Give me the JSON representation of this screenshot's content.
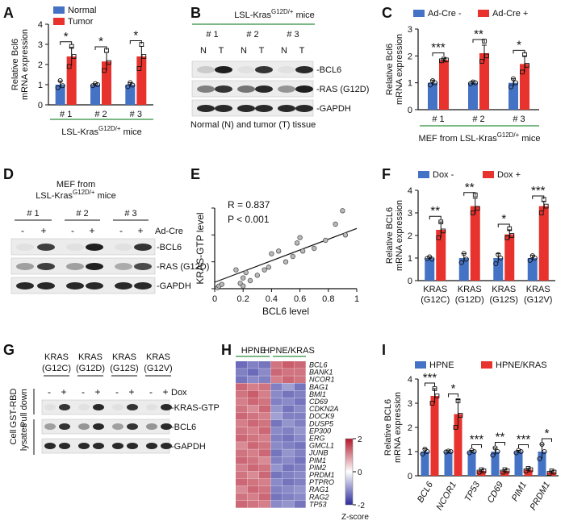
{
  "colors": {
    "blue": "#4472c4",
    "red": "#e8322d",
    "axis": "#111111",
    "grid_line": "#2f8f3f"
  },
  "panels": {
    "A": {
      "letter": "A",
      "legend": [
        "Normal",
        "Tumor"
      ],
      "ylabel_1": "Relative Bcl6",
      "ylabel_2": "mRNA expression",
      "ticks": [
        "0",
        "1",
        "2",
        "3",
        "4"
      ],
      "groups": [
        "# 1",
        "# 2",
        "# 3"
      ],
      "stars": [
        "*",
        "*",
        "*"
      ],
      "footer": "LSL-Kras",
      "footer_sup": "G12D/+",
      "footer_tail": " mice"
    },
    "B": {
      "letter": "B",
      "header": "LSL-Kras",
      "header_sup": "G12D/+",
      "header_tail": "  mice",
      "groups": [
        "# 1",
        "# 2",
        "# 3"
      ],
      "lanes": [
        "N",
        "T",
        "N",
        "T",
        "N",
        "T"
      ],
      "bands": [
        "-BCL6",
        "-RAS (G12D)",
        "-GAPDH"
      ],
      "caption": "Normal (N) and tumor (T) tissue"
    },
    "C": {
      "letter": "C",
      "legend": [
        "Ad-Cre -",
        "Ad-Cre +"
      ],
      "ylabel_1": "Relative Bcl6",
      "ylabel_2": "mRNA expression",
      "ticks": [
        "0",
        "1",
        "2",
        "3"
      ],
      "groups": [
        "# 1",
        "# 2",
        "# 3"
      ],
      "stars": [
        "***",
        "**",
        "*"
      ],
      "footer": "MEF from LSL-Kras",
      "footer_sup": "G12D/+",
      "footer_tail": " mice"
    },
    "D": {
      "letter": "D",
      "header_1": "MEF from",
      "header_2": "LSL-Kras",
      "header_sup": "G12D/+",
      "header_tail": " mice",
      "groups": [
        "# 1",
        "# 2",
        "# 3"
      ],
      "signs": [
        "-",
        "+",
        "-",
        "+",
        "-",
        "+"
      ],
      "treatment": "Ad-Cre",
      "bands": [
        "-BCL6",
        "-RAS (G12D)",
        "-GAPDH"
      ]
    },
    "E": {
      "letter": "E",
      "r_text": "R = 0.837",
      "p_text": "P < 0.001",
      "xlabel": "BCL6  level",
      "ylabel": "KRAS-GTP level",
      "ticks": [
        "0",
        "0.2",
        "0.4",
        "0.6",
        "0.8",
        "1"
      ]
    },
    "F": {
      "letter": "F",
      "legend": [
        "Dox -",
        "Dox +"
      ],
      "ylabel_1": "Relative BCL6",
      "ylabel_2": "mRNA expression",
      "ticks": [
        "0",
        "1",
        "2",
        "3",
        "4"
      ],
      "groups_1": [
        "KRAS",
        "KRAS",
        "KRAS",
        "KRAS"
      ],
      "groups_2": [
        "(G12C)",
        "(G12D)",
        "(G12S)",
        "(G12V)"
      ],
      "stars": [
        "**",
        "**",
        "*",
        "***"
      ]
    },
    "G": {
      "letter": "G",
      "groups_1": [
        "KRAS",
        "KRAS",
        "KRAS",
        "KRAS"
      ],
      "groups_2": [
        "(G12C)",
        "(G12D)",
        "(G12S)",
        "(G12V)"
      ],
      "signs": [
        "-",
        "+",
        "-",
        "+",
        "-",
        "+",
        "-",
        "+"
      ],
      "treatment": "Dox",
      "side_1a": "GST-RBD",
      "side_1b": "Pull down",
      "side_2a": "Cell",
      "side_2b": "lysates",
      "bands": [
        "-KRAS-GTP",
        "-BCL6",
        "-GAPDH"
      ]
    },
    "H": {
      "letter": "H",
      "groups": [
        "HPNE",
        "HPNE/KRAS"
      ],
      "genes": [
        "BCL6",
        "BANK1",
        "NCOR1",
        "BAG1",
        "BMI1",
        "CD69",
        "CDKN2A",
        "DOCK9",
        "DUSP5",
        "EP300",
        "ERG",
        "GMCL1",
        "JUNB",
        "PIM1",
        "PIM2",
        "PRDM1",
        "PTPRO",
        "RAG1",
        "RAG2",
        "TP53"
      ],
      "scale_ticks": [
        "2",
        "0",
        "-2"
      ],
      "scale_label": "Z-score"
    },
    "I": {
      "letter": "I",
      "legend": [
        "HPNE",
        "HPNE/KRAS"
      ],
      "ylabel_1": "Relative BCL6",
      "ylabel_2": "mRNA expression",
      "ticks": [
        "0",
        "1",
        "2",
        "3",
        "4"
      ],
      "genes": [
        "BCL6",
        "NCOR1",
        "TP53",
        "CD69",
        "PIM1",
        "PRDM1"
      ],
      "stars": [
        "***",
        "*",
        "***",
        "**",
        "***",
        "*"
      ]
    }
  },
  "chart_data": [
    {
      "panel": "A",
      "type": "bar",
      "title": "",
      "ylabel": "Relative Bcl6 mRNA expression",
      "ylim": [
        0,
        4
      ],
      "categories": [
        "# 1",
        "# 2",
        "# 3"
      ],
      "series": [
        {
          "name": "Normal",
          "values": [
            1.0,
            1.0,
            1.0
          ],
          "errors": [
            0.18,
            0.05,
            0.1
          ]
        },
        {
          "name": "Tumor",
          "values": [
            2.4,
            2.15,
            2.4
          ],
          "errors": [
            0.45,
            0.45,
            0.5
          ]
        }
      ],
      "points": {
        "Normal": [
          [
            0.85,
            1.2,
            0.95
          ],
          [
            0.95,
            1.05,
            1.0
          ],
          [
            0.9,
            1.1,
            0.98
          ]
        ],
        "Tumor": [
          [
            1.9,
            2.9,
            2.4
          ],
          [
            1.7,
            2.7,
            2.1
          ],
          [
            1.8,
            3.0,
            2.4
          ]
        ]
      }
    },
    {
      "panel": "C",
      "type": "bar",
      "title": "",
      "ylabel": "Relative Bcl6 mRNA expression",
      "ylim": [
        0,
        3
      ],
      "categories": [
        "# 1",
        "# 2",
        "# 3"
      ],
      "series": [
        {
          "name": "Ad-Cre -",
          "values": [
            1.0,
            1.0,
            1.0
          ],
          "errors": [
            0.1,
            0.05,
            0.15
          ]
        },
        {
          "name": "Ad-Cre +",
          "values": [
            1.85,
            2.1,
            1.7
          ],
          "errors": [
            0.05,
            0.3,
            0.3
          ]
        }
      ],
      "points": {
        "Ad-Cre -": [
          [
            0.92,
            1.08,
            1.0
          ],
          [
            0.97,
            1.03,
            1.0
          ],
          [
            0.85,
            1.15,
            1.0
          ]
        ],
        "Ad-Cre +": [
          [
            1.82,
            1.88,
            1.85
          ],
          [
            1.8,
            2.55,
            2.0
          ],
          [
            1.4,
            2.05,
            1.65
          ]
        ]
      }
    },
    {
      "panel": "E",
      "type": "scatter",
      "title": "",
      "xlabel": "BCL6  level",
      "ylabel": "KRAS-GTP level",
      "xlim": [
        0,
        1
      ],
      "ylim": [
        0,
        1.5
      ],
      "x": [
        0.02,
        0.03,
        0.05,
        0.15,
        0.18,
        0.2,
        0.22,
        0.2,
        0.25,
        0.3,
        0.38,
        0.35,
        0.4,
        0.45,
        0.5,
        0.55,
        0.58,
        0.62,
        0.6,
        0.7,
        0.78,
        0.85,
        0.9,
        0.92
      ],
      "y": [
        0.02,
        0.05,
        0.08,
        0.35,
        0.1,
        0.2,
        0.3,
        0.05,
        0.15,
        0.25,
        0.4,
        0.35,
        0.65,
        0.7,
        0.5,
        0.6,
        0.85,
        0.7,
        0.95,
        0.75,
        0.9,
        1.2,
        1.45,
        1.0
      ],
      "fit": {
        "x": [
          0,
          1
        ],
        "y": [
          0.12,
          1.12
        ]
      }
    },
    {
      "panel": "F",
      "type": "bar",
      "title": "",
      "ylabel": "Relative BCL6 mRNA expression",
      "ylim": [
        0,
        4
      ],
      "categories": [
        "KRAS (G12C)",
        "KRAS (G12D)",
        "KRAS (G12S)",
        "KRAS (G12V)"
      ],
      "series": [
        {
          "name": "Dox -",
          "values": [
            1.0,
            1.0,
            1.0,
            1.0
          ],
          "errors": [
            0.05,
            0.2,
            0.2,
            0.12
          ]
        },
        {
          "name": "Dox +",
          "values": [
            2.25,
            3.3,
            2.05,
            3.3
          ],
          "errors": [
            0.35,
            0.35,
            0.2,
            0.2
          ]
        }
      ],
      "points": {
        "Dox -": [
          [
            0.98,
            1.05,
            0.95
          ],
          [
            0.8,
            1.2,
            0.95
          ],
          [
            0.75,
            1.15,
            1.0
          ],
          [
            0.9,
            1.1,
            1.0
          ]
        ],
        "Dox +": [
          [
            1.9,
            2.6,
            2.2
          ],
          [
            3.0,
            3.8,
            3.2
          ],
          [
            1.9,
            2.3,
            2.0
          ],
          [
            3.0,
            3.6,
            3.3
          ]
        ]
      }
    },
    {
      "panel": "I",
      "type": "bar",
      "title": "",
      "ylabel": "Relative BCL6 mRNA expression",
      "ylim": [
        0,
        4
      ],
      "categories": [
        "BCL6",
        "NCOR1",
        "TP53",
        "CD69",
        "PIM1",
        "PRDM1"
      ],
      "series": [
        {
          "name": "HPNE",
          "values": [
            1.0,
            1.0,
            1.0,
            1.0,
            1.0,
            1.0
          ],
          "errors": [
            0.12,
            0.04,
            0.05,
            0.15,
            0.05,
            0.3
          ]
        },
        {
          "name": "HPNE/KRAS",
          "values": [
            3.3,
            2.55,
            0.2,
            0.2,
            0.25,
            0.15
          ],
          "errors": [
            0.3,
            0.6,
            0.05,
            0.05,
            0.05,
            0.05
          ]
        }
      ],
      "points": {
        "HPNE": [
          [
            0.9,
            1.1,
            1.0
          ],
          [
            0.98,
            1.02,
            1.0
          ],
          [
            0.95,
            1.05,
            1.0
          ],
          [
            0.85,
            1.15,
            1.0
          ],
          [
            0.95,
            1.05,
            1.0
          ],
          [
            0.7,
            1.3,
            1.0
          ]
        ],
        "HPNE/KRAS": [
          [
            3.0,
            3.6,
            3.3
          ],
          [
            2.0,
            3.1,
            2.5
          ],
          [
            0.15,
            0.25,
            0.2
          ],
          [
            0.15,
            0.25,
            0.2
          ],
          [
            0.2,
            0.3,
            0.25
          ],
          [
            0.1,
            0.2,
            0.15
          ]
        ]
      }
    },
    {
      "panel": "H",
      "type": "heatmap",
      "title": "",
      "columns": [
        "HPNE",
        "HPNE",
        "HPNE",
        "HPNE/KRAS",
        "HPNE/KRAS",
        "HPNE/KRAS"
      ],
      "rows": [
        "BCL6",
        "BANK1",
        "NCOR1",
        "BAG1",
        "BMI1",
        "CD69",
        "CDKN2A",
        "DOCK9",
        "DUSP5",
        "EP300",
        "ERG",
        "GMCL1",
        "JUNB",
        "PIM1",
        "PIM2",
        "PRDM1",
        "PTPRO",
        "RAG1",
        "RAG2",
        "TP53"
      ],
      "zlim": [
        -2,
        2
      ],
      "values": [
        [
          -1.4,
          -1.2,
          -1.3,
          1.2,
          1.4,
          1.3
        ],
        [
          -1.2,
          -1.4,
          -1.1,
          1.3,
          1.2,
          1.2
        ],
        [
          -1.3,
          -1.1,
          -1.2,
          1.1,
          1.3,
          1.2
        ],
        [
          1.3,
          1.1,
          1.2,
          -1.2,
          -0.9,
          -1.3
        ],
        [
          1.2,
          1.4,
          1.1,
          -1.1,
          -1.3,
          -1.2
        ],
        [
          1.1,
          1.3,
          1.2,
          -1.2,
          -1.1,
          -1.3
        ],
        [
          1.2,
          1.0,
          1.3,
          -1.0,
          -1.3,
          -1.1
        ],
        [
          1.3,
          1.2,
          1.1,
          -0.9,
          -1.2,
          -1.2
        ],
        [
          1.1,
          1.3,
          1.2,
          -1.3,
          -1.0,
          -1.2
        ],
        [
          1.2,
          1.1,
          1.3,
          -1.1,
          -1.2,
          -1.0
        ],
        [
          1.3,
          1.2,
          1.1,
          -1.2,
          -1.3,
          -1.1
        ],
        [
          1.0,
          1.3,
          1.2,
          -1.1,
          -1.2,
          -1.3
        ],
        [
          1.2,
          1.1,
          1.3,
          -1.3,
          -1.0,
          -1.2
        ],
        [
          1.3,
          1.2,
          1.0,
          -1.2,
          -1.1,
          -1.3
        ],
        [
          1.1,
          1.3,
          1.2,
          -1.0,
          -1.3,
          -1.2
        ],
        [
          1.2,
          1.0,
          1.3,
          -1.3,
          -1.2,
          -1.1
        ],
        [
          1.3,
          1.2,
          1.1,
          -1.1,
          -1.3,
          -1.2
        ],
        [
          1.0,
          1.3,
          1.2,
          -1.2,
          -1.1,
          -1.0
        ],
        [
          1.2,
          1.1,
          1.3,
          -1.3,
          -1.2,
          -1.1
        ],
        [
          1.3,
          1.2,
          1.1,
          -1.1,
          -1.0,
          -1.3
        ]
      ]
    }
  ]
}
